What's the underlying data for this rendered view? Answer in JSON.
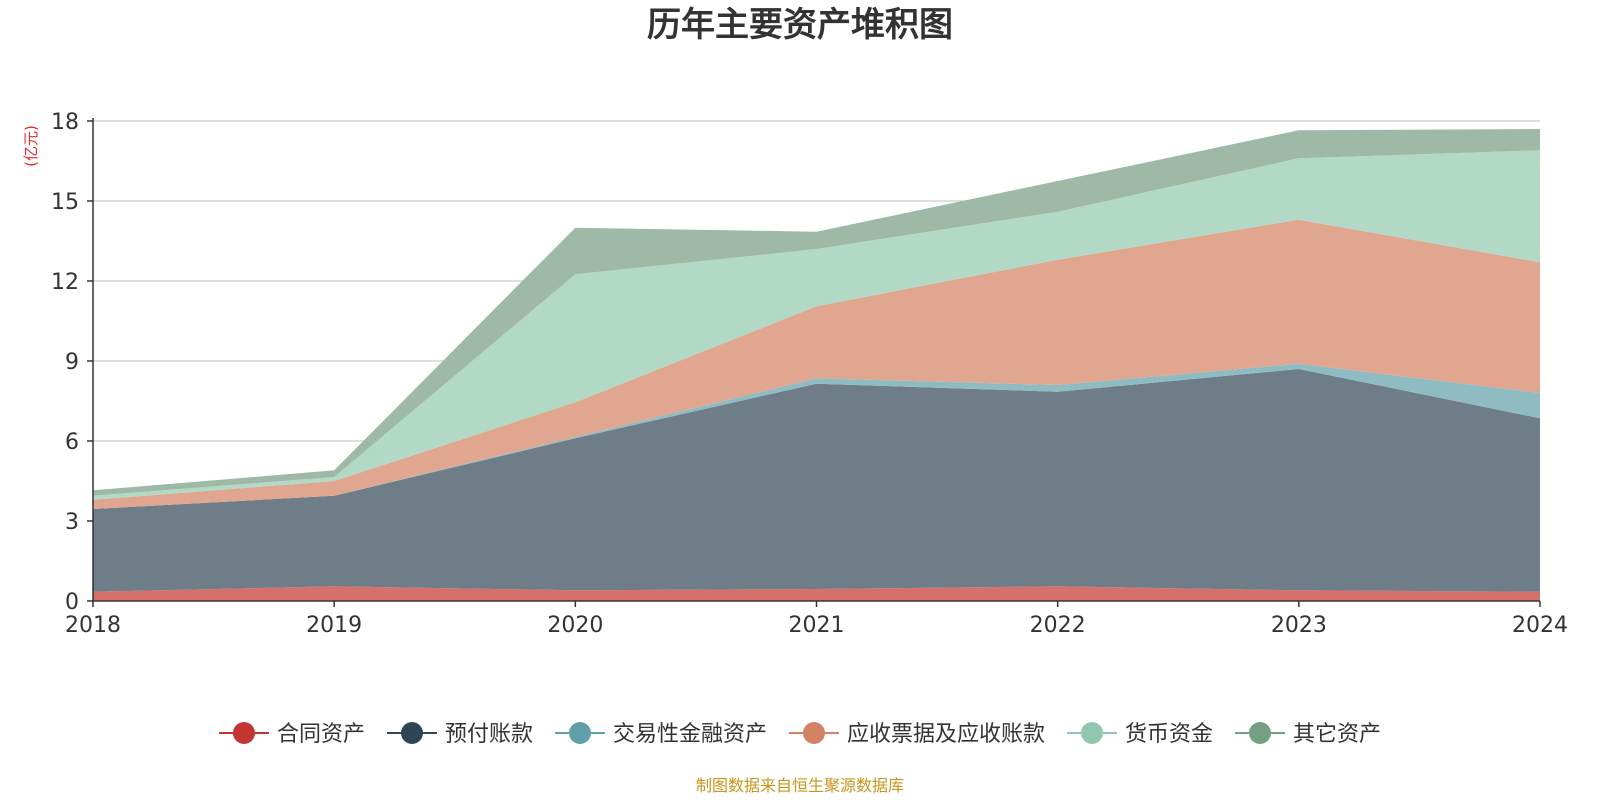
{
  "chart_data": {
    "type": "area",
    "stacked": true,
    "title": "历年主要资产堆积图",
    "unit_label": "亿元",
    "source": "制图数据来自恒生聚源数据库",
    "categories": [
      "2018",
      "2019",
      "2020",
      "2021",
      "2022",
      "2023",
      "2024"
    ],
    "ylim": [
      0,
      18
    ],
    "yticks": [
      0,
      3,
      6,
      9,
      12,
      15,
      18
    ],
    "grid": true,
    "legend_position": "bottom",
    "series": [
      {
        "name": "合同资产",
        "color": "#c23531",
        "fill": "#d6706d",
        "values": [
          0.35,
          0.55,
          0.4,
          0.45,
          0.55,
          0.4,
          0.35
        ]
      },
      {
        "name": "预付账款",
        "color": "#2f4554",
        "fill": "#6e7d88",
        "values": [
          3.1,
          3.4,
          5.7,
          7.7,
          7.3,
          8.3,
          6.5
        ]
      },
      {
        "name": "交易性金融资产",
        "color": "#61a0a8",
        "fill": "#8fbcc2",
        "values": [
          0.0,
          0.0,
          0.05,
          0.2,
          0.25,
          0.2,
          0.95
        ]
      },
      {
        "name": "应收票据及应收账款",
        "color": "#d48265",
        "fill": "#e0a690",
        "values": [
          0.35,
          0.55,
          1.3,
          2.7,
          4.7,
          5.4,
          4.9
        ]
      },
      {
        "name": "货币资金",
        "color": "#91c7ae",
        "fill": "#b1d9c6",
        "values": [
          0.15,
          0.15,
          4.8,
          2.15,
          1.8,
          2.3,
          4.2
        ]
      },
      {
        "name": "其它资产",
        "color": "#749f83",
        "fill": "#9eb9a6",
        "values": [
          0.2,
          0.25,
          1.75,
          0.65,
          1.15,
          1.05,
          0.8
        ]
      }
    ]
  }
}
